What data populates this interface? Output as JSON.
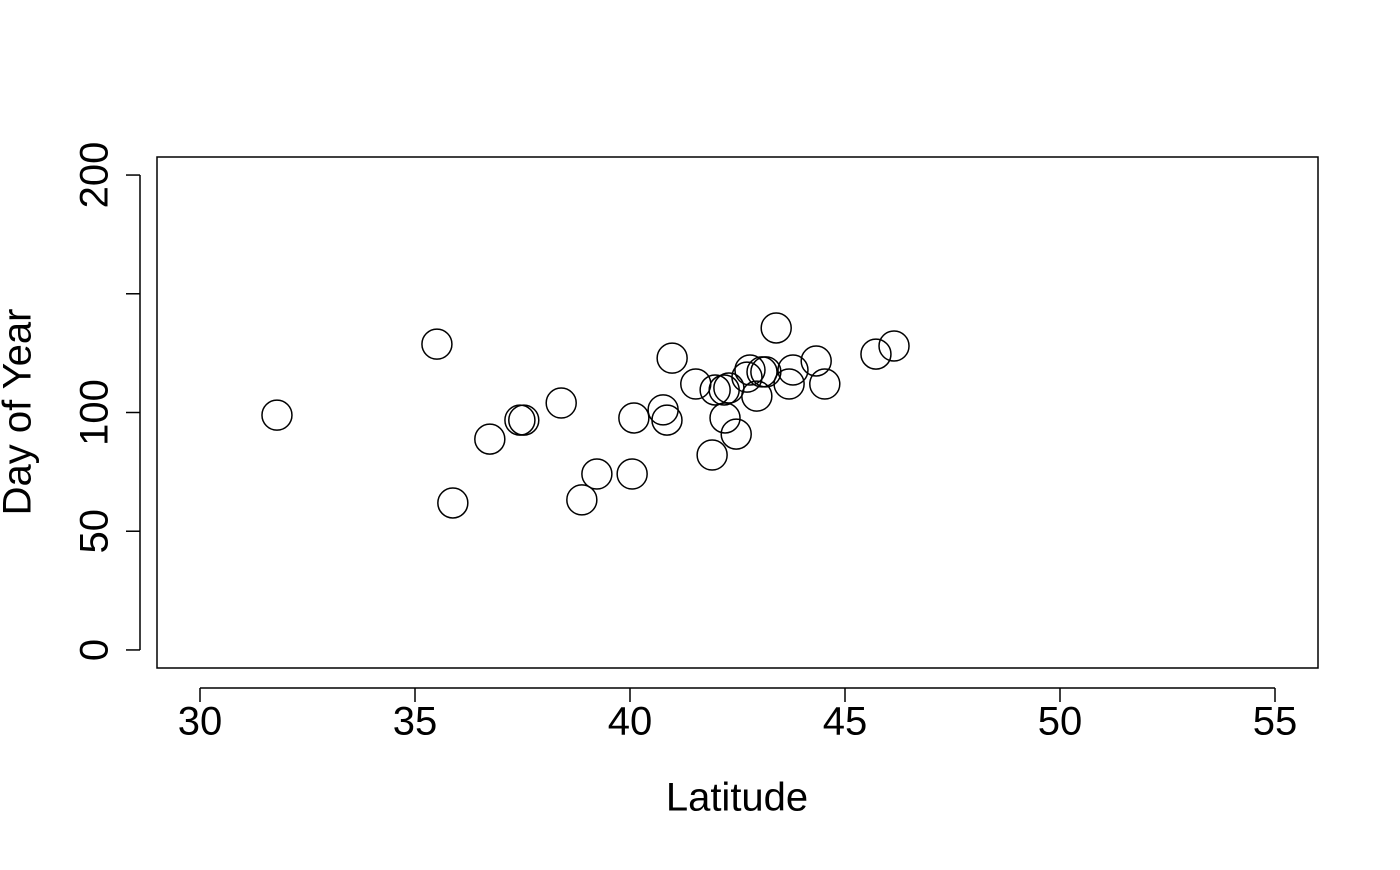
{
  "chart_data": {
    "type": "scatter",
    "xlabel": "Latitude",
    "ylabel": "Day of Year",
    "x": [
      31.79,
      35.51,
      35.88,
      36.74,
      37.44,
      37.53,
      38.4,
      38.88,
      39.23,
      40.05,
      40.09,
      40.77,
      40.86,
      40.98,
      41.53,
      41.91,
      41.98,
      42.19,
      42.3,
      42.21,
      42.47,
      42.72,
      42.79,
      42.95,
      43.07,
      43.16,
      43.4,
      43.7,
      43.79,
      44.33,
      44.53,
      45.72,
      46.14
    ],
    "values": [
      98.9,
      128.8,
      61.9,
      88.8,
      96.8,
      96.8,
      104.0,
      63.2,
      74.1,
      74.1,
      97.7,
      101.1,
      96.8,
      122.9,
      112.0,
      82.1,
      109.5,
      109.5,
      110.3,
      97.7,
      90.9,
      114.9,
      117.9,
      106.9,
      117.1,
      117.1,
      135.6,
      112.0,
      117.9,
      121.7,
      112.0,
      124.6,
      128.0
    ],
    "color": "#000000",
    "xlim": [
      29,
      56
    ],
    "ylim": [
      -7.6,
      207.6
    ],
    "xticks": [
      30,
      35,
      40,
      45,
      50,
      55
    ],
    "yticks": [
      0,
      50,
      100,
      {
        "value": 150,
        "label": null
      },
      200
    ]
  }
}
